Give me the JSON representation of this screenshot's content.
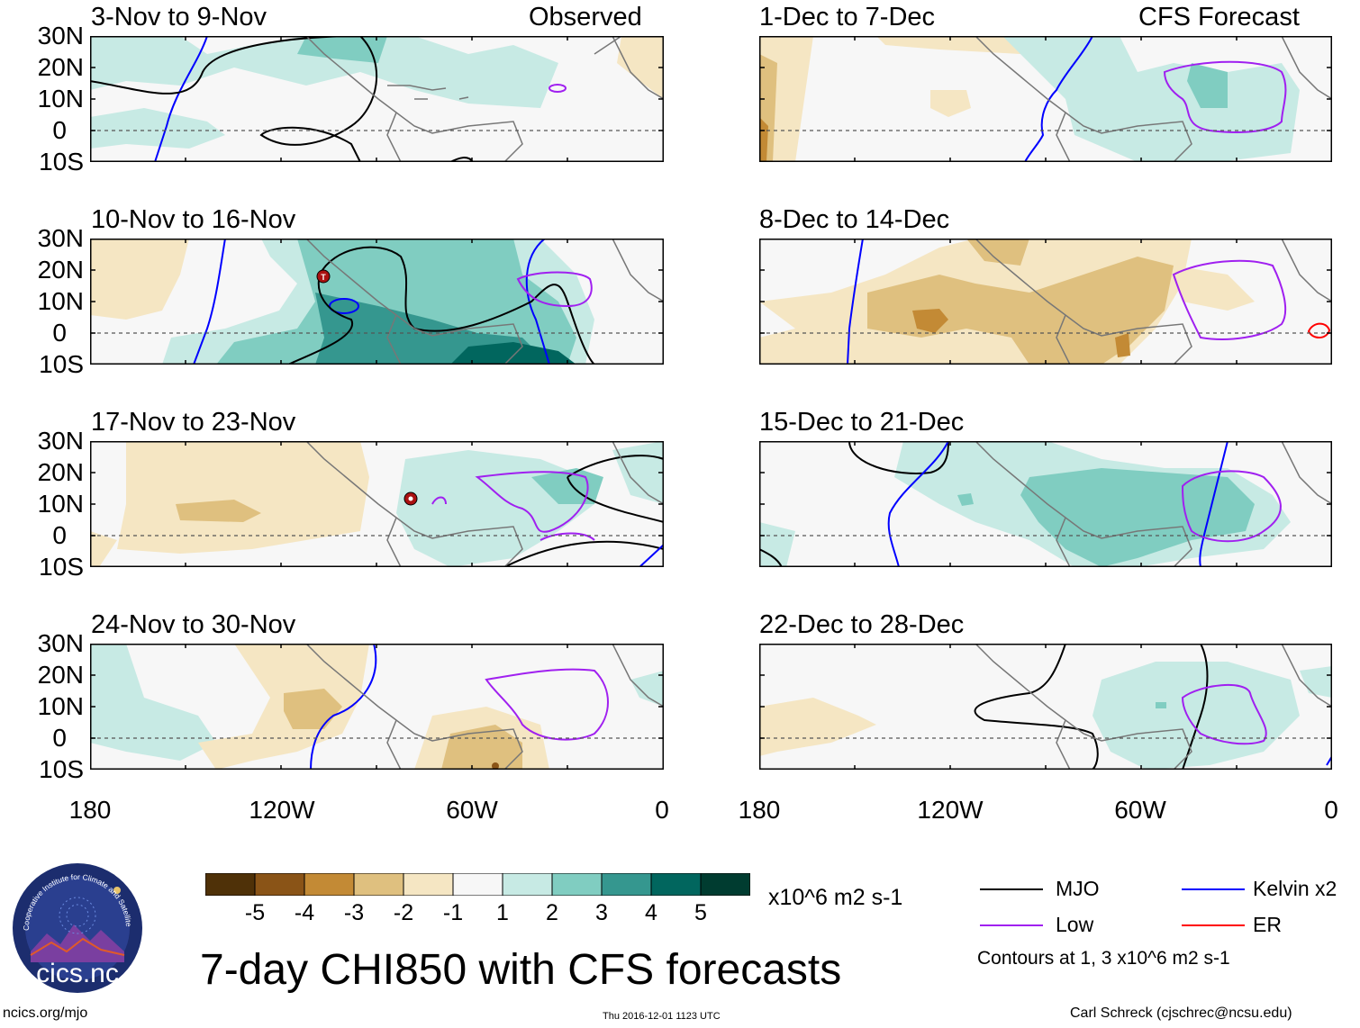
{
  "title": "7-day CHI850 with CFS forecasts",
  "units": "x10^6 m2 s-1",
  "left_column_label": "Observed",
  "right_column_label": "CFS Forecast",
  "left_panels": [
    {
      "title": "3-Nov to 9-Nov"
    },
    {
      "title": "10-Nov to 16-Nov"
    },
    {
      "title": "17-Nov to 23-Nov"
    },
    {
      "title": "24-Nov to 30-Nov"
    }
  ],
  "right_panels": [
    {
      "title": "1-Dec to 7-Dec"
    },
    {
      "title": "8-Dec to 14-Dec"
    },
    {
      "title": "15-Dec to 21-Dec"
    },
    {
      "title": "22-Dec to 28-Dec"
    }
  ],
  "y_axis_labels": [
    "30N",
    "20N",
    "10N",
    "0",
    "10S"
  ],
  "x_axis_labels": [
    "180",
    "120W",
    "60W",
    "0"
  ],
  "colorbar": {
    "ticks": [
      "-5",
      "-4",
      "-3",
      "-2",
      "-1",
      "1",
      "2",
      "3",
      "4",
      "5"
    ],
    "colors": [
      "#4f3108",
      "#8a5417",
      "#c38a35",
      "#dfc07f",
      "#f5e6c3",
      "#f7f7f7",
      "#c7eae4",
      "#80cdc1",
      "#35978f",
      "#01665e",
      "#003c30"
    ]
  },
  "legend": {
    "items": [
      {
        "label": "MJO",
        "color": "#000000"
      },
      {
        "label": "Kelvin x2",
        "color": "#0000ff"
      },
      {
        "label": "Low",
        "color": "#a020f0"
      },
      {
        "label": "ER",
        "color": "#ff0000"
      }
    ],
    "note": "Contours at 1, 3 x10^6 m2 s-1"
  },
  "logo": {
    "text": "cics.nc",
    "ring_text": "Cooperative Institute for Climate and Satellites"
  },
  "footer": {
    "url": "ncics.org/mjo",
    "timestamp": "Thu 2016-12-01 1123 UTC",
    "author": "Carl Schreck (cjschrec@ncsu.edu)"
  }
}
